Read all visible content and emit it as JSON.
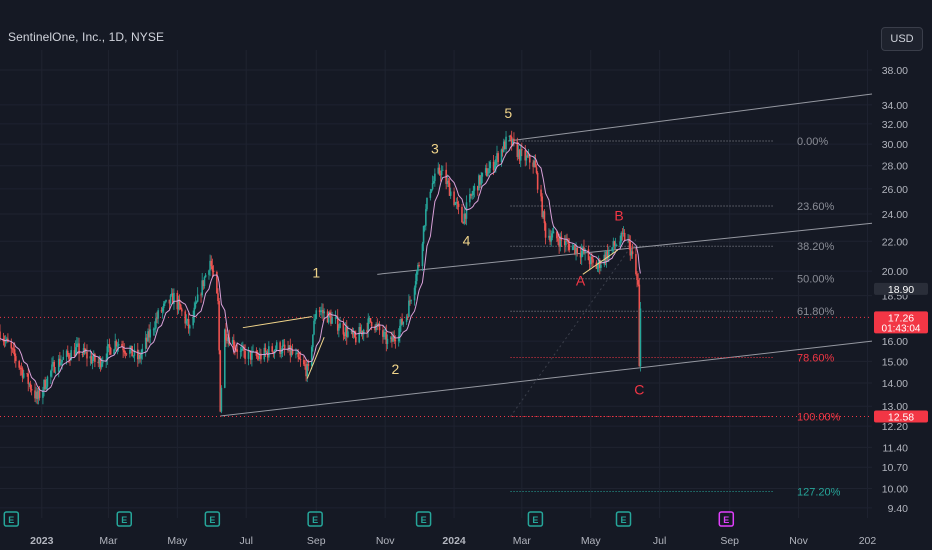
{
  "header": {
    "symbol_title": "SentinelOne, Inc., 1D, NYSE",
    "currency_button": "USD"
  },
  "colors": {
    "background": "#151924",
    "up": "#26a69a",
    "down": "#ef5350",
    "ma_line": "#d8a0d8",
    "fib_line": "#8a8d96",
    "channel": "#9598a1",
    "wave_impulse": "#f0d48a",
    "wave_corrective": "#f23645",
    "earnings_badge": "#26a69a",
    "earnings_future": "#e040fb"
  },
  "chart_data": {
    "type": "candlestick",
    "x_axis": {
      "labels": [
        "2023",
        "Mar",
        "May",
        "Jul",
        "Sep",
        "Nov",
        "2024",
        "Mar",
        "May",
        "Jul",
        "Sep",
        "Nov",
        "202"
      ],
      "dates": [
        "2023-01-01",
        "2023-03-01",
        "2023-05-01",
        "2023-07-01",
        "2023-09-01",
        "2023-11-01",
        "2024-01-01",
        "2024-03-01",
        "2024-05-01",
        "2024-07-01",
        "2024-09-01",
        "2024-11-01",
        "2025-01-01"
      ],
      "range": [
        "2022-11-25",
        "2025-01-05"
      ]
    },
    "y_axis": {
      "scale": "log",
      "range": [
        9.1,
        40.5
      ],
      "tick_labels": [
        "38.00",
        "34.00",
        "32.00",
        "30.00",
        "28.00",
        "26.00",
        "24.00",
        "22.00",
        "20.00",
        "18.50",
        "16.00",
        "15.00",
        "14.00",
        "13.00",
        "12.20",
        "11.40",
        "10.70",
        "10.00",
        "9.40"
      ],
      "ticks": [
        38.0,
        34.0,
        32.0,
        30.0,
        28.0,
        26.0,
        24.0,
        22.0,
        20.0,
        18.5,
        16.0,
        15.0,
        14.0,
        13.0,
        12.2,
        11.4,
        10.7,
        10.0,
        9.4
      ]
    },
    "price_path": [
      [
        "2022-11-25",
        16.5
      ],
      [
        "2022-12-10",
        15.0
      ],
      [
        "2022-12-28",
        13.3
      ],
      [
        "2023-01-12",
        14.8
      ],
      [
        "2023-02-01",
        15.6
      ],
      [
        "2023-02-20",
        14.9
      ],
      [
        "2023-03-08",
        16.0
      ],
      [
        "2023-03-28",
        15.1
      ],
      [
        "2023-04-15",
        17.5
      ],
      [
        "2023-04-28",
        18.4
      ],
      [
        "2023-05-12",
        16.6
      ],
      [
        "2023-05-30",
        20.7
      ],
      [
        "2023-06-06",
        18.0
      ],
      [
        "2023-06-08",
        13.0
      ],
      [
        "2023-06-12",
        16.5
      ],
      [
        "2023-06-26",
        15.4
      ],
      [
        "2023-07-12",
        15.2
      ],
      [
        "2023-07-28",
        15.7
      ],
      [
        "2023-08-10",
        15.4
      ],
      [
        "2023-08-25",
        14.5
      ],
      [
        "2023-09-01",
        17.8
      ],
      [
        "2023-09-18",
        17.0
      ],
      [
        "2023-10-05",
        16.1
      ],
      [
        "2023-10-20",
        17.1
      ],
      [
        "2023-11-05",
        15.8
      ],
      [
        "2023-11-20",
        17.4
      ],
      [
        "2023-12-01",
        20.5
      ],
      [
        "2023-12-10",
        26.0
      ],
      [
        "2023-12-20",
        27.6
      ],
      [
        "2023-12-28",
        26.0
      ],
      [
        "2024-01-08",
        23.5
      ],
      [
        "2024-01-20",
        26.2
      ],
      [
        "2024-02-05",
        28.2
      ],
      [
        "2024-02-18",
        30.5
      ],
      [
        "2024-02-28",
        29.0
      ],
      [
        "2024-03-12",
        28.2
      ],
      [
        "2024-03-22",
        22.6
      ],
      [
        "2024-04-08",
        21.9
      ],
      [
        "2024-04-25",
        21.2
      ],
      [
        "2024-05-05",
        20.2
      ],
      [
        "2024-05-22",
        21.7
      ],
      [
        "2024-06-01",
        22.4
      ],
      [
        "2024-06-06",
        21.2
      ],
      [
        "2024-06-12",
        19.0
      ],
      [
        "2024-06-13",
        14.6
      ],
      [
        "2024-06-14",
        17.6
      ]
    ],
    "indicators": [
      {
        "name": "moving-average",
        "color": "#d8a0d8"
      }
    ],
    "fibonacci_retracement": {
      "levels": [
        {
          "label": "0.00%",
          "ratio": 0.0,
          "color": "#8a8d96"
        },
        {
          "label": "23.60%",
          "ratio": 0.236,
          "color": "#8a8d96"
        },
        {
          "label": "38.20%",
          "ratio": 0.382,
          "color": "#8a8d96"
        },
        {
          "label": "50.00%",
          "ratio": 0.5,
          "color": "#8a8d96"
        },
        {
          "label": "61.80%",
          "ratio": 0.618,
          "color": "#8a8d96"
        },
        {
          "label": "78.60%",
          "ratio": 0.786,
          "color": "#f23645"
        },
        {
          "label": "100.00%",
          "ratio": 1.0,
          "color": "#f23645"
        },
        {
          "label": "127.20%",
          "ratio": 1.272,
          "color": "#26a69a"
        }
      ],
      "high": 30.3,
      "low": 12.58,
      "start_date": "2024-02-20",
      "end_date": "2024-10-10"
    },
    "channel_lines": [
      {
        "from": [
          "2023-06-08",
          12.6
        ],
        "to": [
          "2025-01-05",
          16.0
        ]
      },
      {
        "from": [
          "2023-10-25",
          19.8
        ],
        "to": [
          "2025-01-05",
          23.3
        ]
      },
      {
        "from": [
          "2024-02-18",
          30.3
        ],
        "to": [
          "2025-01-05",
          35.2
        ]
      }
    ],
    "wave_labels": [
      {
        "text": "1",
        "date": "2023-09-01",
        "price": 19.6,
        "kind": "impulse"
      },
      {
        "text": "2",
        "date": "2023-11-10",
        "price": 14.4,
        "kind": "impulse"
      },
      {
        "text": "3",
        "date": "2023-12-15",
        "price": 29.1,
        "kind": "impulse"
      },
      {
        "text": "4",
        "date": "2024-01-12",
        "price": 21.7,
        "kind": "impulse"
      },
      {
        "text": "5",
        "date": "2024-02-18",
        "price": 32.6,
        "kind": "impulse"
      },
      {
        "text": "A",
        "date": "2024-04-22",
        "price": 19.1,
        "kind": "corrective"
      },
      {
        "text": "B",
        "date": "2024-05-26",
        "price": 23.5,
        "kind": "corrective"
      },
      {
        "text": "C",
        "date": "2024-06-13",
        "price": 13.5,
        "kind": "corrective"
      }
    ],
    "price_reference_lines": [
      {
        "price": 17.26,
        "color": "#f23645"
      },
      {
        "price": 12.58,
        "color": "#f23645"
      }
    ],
    "price_tags": [
      {
        "label": "18.90",
        "price": 18.9,
        "style": "plain"
      },
      {
        "label": "17.26",
        "sublabel": "01:43:04",
        "price": 17.26,
        "style": "red"
      },
      {
        "label": "12.58",
        "price": 12.58,
        "style": "red"
      }
    ],
    "earnings_markers": [
      {
        "label": "E",
        "date": "2022-12-05",
        "status": "past"
      },
      {
        "label": "E",
        "date": "2023-03-15",
        "status": "past"
      },
      {
        "label": "E",
        "date": "2023-06-01",
        "status": "past"
      },
      {
        "label": "E",
        "date": "2023-08-31",
        "status": "past"
      },
      {
        "label": "E",
        "date": "2023-12-05",
        "status": "past"
      },
      {
        "label": "E",
        "date": "2024-03-13",
        "status": "past"
      },
      {
        "label": "E",
        "date": "2024-05-30",
        "status": "past"
      },
      {
        "label": "E",
        "date": "2024-08-29",
        "status": "future"
      }
    ]
  }
}
